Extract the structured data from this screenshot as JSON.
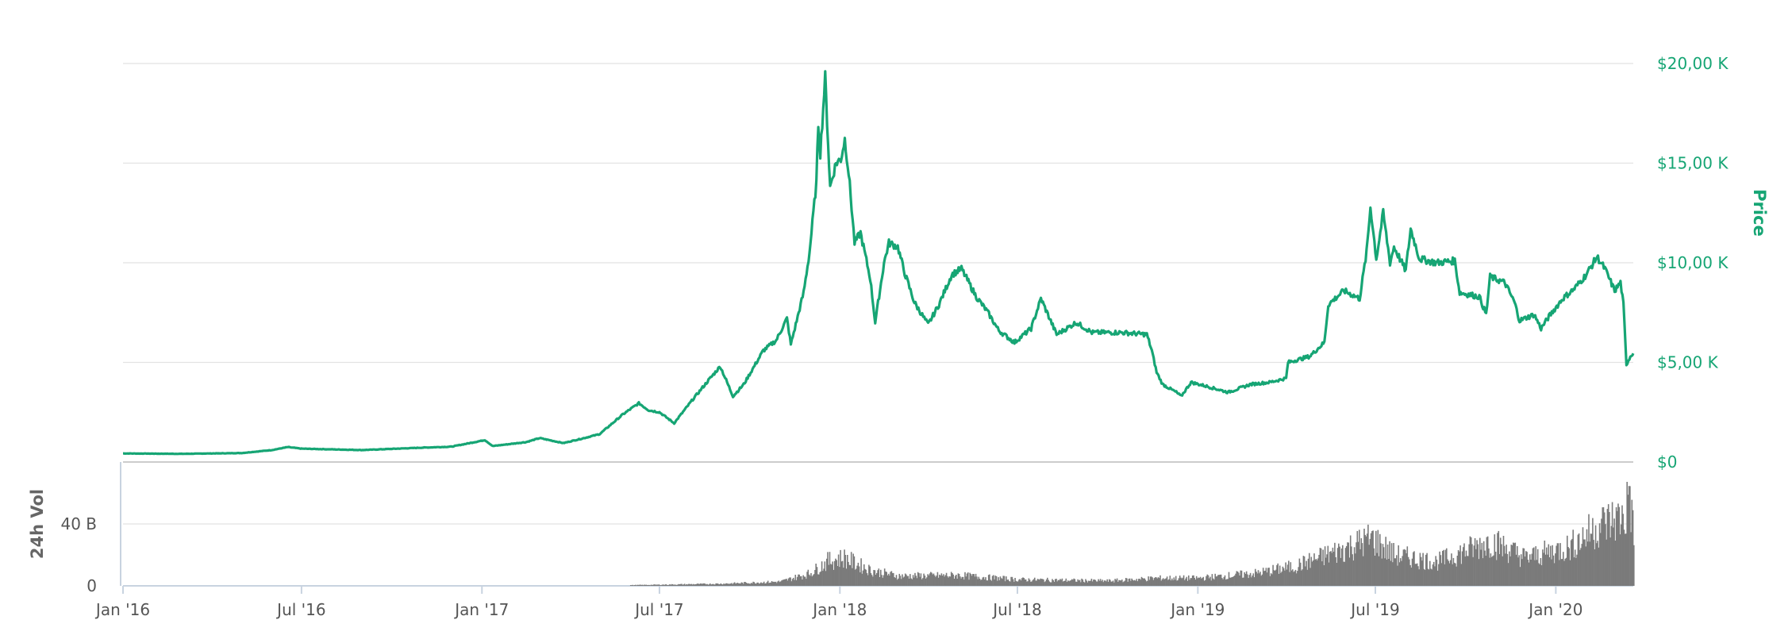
{
  "chart_data": {
    "type": "line",
    "colors": {
      "price": "#16a574",
      "volume": "#7b7b7b",
      "grid": "#e2e2e2"
    },
    "price_axis": {
      "label": "Price",
      "ticks": [
        {
          "value": 0,
          "label": "$0"
        },
        {
          "value": 5000,
          "label": "$5,00 K"
        },
        {
          "value": 10000,
          "label": "$10,00 K"
        },
        {
          "value": 15000,
          "label": "$15,00 K"
        },
        {
          "value": 20000,
          "label": "$20,00 K"
        }
      ],
      "ylim": [
        0,
        20000
      ]
    },
    "volume_axis": {
      "label": "24h Vol",
      "ticks": [
        {
          "value": 0,
          "label": "0"
        },
        {
          "value": 40000000000,
          "label": "40 B"
        }
      ],
      "ylim": [
        0,
        80000000000
      ]
    },
    "x_axis": {
      "range": [
        "2016-01-01",
        "2020-03-20"
      ],
      "ticks": [
        {
          "date": "2016-01-01",
          "label": "Jan '16"
        },
        {
          "date": "2016-07-01",
          "label": "Jul '16"
        },
        {
          "date": "2017-01-01",
          "label": "Jan '17"
        },
        {
          "date": "2017-07-01",
          "label": "Jul '17"
        },
        {
          "date": "2018-01-01",
          "label": "Jan '18"
        },
        {
          "date": "2018-07-01",
          "label": "Jul '18"
        },
        {
          "date": "2019-01-01",
          "label": "Jan '19"
        },
        {
          "date": "2019-07-01",
          "label": "Jul '19"
        },
        {
          "date": "2020-01-01",
          "label": "Jan '20"
        }
      ]
    },
    "series": [
      {
        "name": "Price",
        "points": [
          [
            "2016-01-01",
            430
          ],
          [
            "2016-03-01",
            410
          ],
          [
            "2016-05-01",
            450
          ],
          [
            "2016-06-01",
            600
          ],
          [
            "2016-06-17",
            750
          ],
          [
            "2016-07-01",
            670
          ],
          [
            "2016-09-01",
            600
          ],
          [
            "2016-11-01",
            720
          ],
          [
            "2016-12-01",
            770
          ],
          [
            "2017-01-04",
            1100
          ],
          [
            "2017-01-12",
            800
          ],
          [
            "2017-02-15",
            1000
          ],
          [
            "2017-03-01",
            1200
          ],
          [
            "2017-03-25",
            950
          ],
          [
            "2017-04-15",
            1200
          ],
          [
            "2017-05-01",
            1400
          ],
          [
            "2017-05-25",
            2400
          ],
          [
            "2017-06-10",
            2950
          ],
          [
            "2017-06-20",
            2600
          ],
          [
            "2017-07-01",
            2500
          ],
          [
            "2017-07-16",
            1950
          ],
          [
            "2017-08-05",
            3200
          ],
          [
            "2017-08-20",
            4100
          ],
          [
            "2017-09-01",
            4800
          ],
          [
            "2017-09-14",
            3300
          ],
          [
            "2017-09-25",
            3900
          ],
          [
            "2017-10-15",
            5600
          ],
          [
            "2017-10-28",
            6100
          ],
          [
            "2017-11-08",
            7200
          ],
          [
            "2017-11-12",
            5900
          ],
          [
            "2017-11-25",
            8500
          ],
          [
            "2017-12-01",
            10500
          ],
          [
            "2017-12-08",
            14000
          ],
          [
            "2017-12-10",
            17000
          ],
          [
            "2017-12-12",
            15500
          ],
          [
            "2017-12-17",
            19300
          ],
          [
            "2017-12-22",
            13800
          ],
          [
            "2017-12-28",
            15000
          ],
          [
            "2018-01-02",
            15200
          ],
          [
            "2018-01-06",
            16200
          ],
          [
            "2018-01-10",
            14500
          ],
          [
            "2018-01-16",
            11000
          ],
          [
            "2018-01-22",
            11500
          ],
          [
            "2018-02-01",
            9200
          ],
          [
            "2018-02-06",
            7000
          ],
          [
            "2018-02-15",
            10000
          ],
          [
            "2018-02-20",
            11000
          ],
          [
            "2018-03-01",
            10800
          ],
          [
            "2018-03-08",
            9500
          ],
          [
            "2018-03-18",
            8000
          ],
          [
            "2018-04-01",
            6900
          ],
          [
            "2018-04-12",
            7900
          ],
          [
            "2018-04-25",
            9400
          ],
          [
            "2018-05-05",
            9700
          ],
          [
            "2018-05-20",
            8300
          ],
          [
            "2018-06-01",
            7500
          ],
          [
            "2018-06-12",
            6600
          ],
          [
            "2018-06-28",
            6000
          ],
          [
            "2018-07-15",
            6700
          ],
          [
            "2018-07-25",
            8200
          ],
          [
            "2018-08-10",
            6400
          ],
          [
            "2018-08-30",
            7000
          ],
          [
            "2018-09-15",
            6500
          ],
          [
            "2018-10-15",
            6500
          ],
          [
            "2018-11-10",
            6400
          ],
          [
            "2018-11-15",
            5600
          ],
          [
            "2018-11-20",
            4500
          ],
          [
            "2018-11-26",
            3900
          ],
          [
            "2018-12-10",
            3500
          ],
          [
            "2018-12-15",
            3300
          ],
          [
            "2018-12-25",
            4000
          ],
          [
            "2019-01-10",
            3800
          ],
          [
            "2019-02-01",
            3500
          ],
          [
            "2019-02-24",
            3900
          ],
          [
            "2019-03-15",
            4000
          ],
          [
            "2019-04-01",
            4200
          ],
          [
            "2019-04-03",
            5000
          ],
          [
            "2019-04-25",
            5300
          ],
          [
            "2019-05-10",
            6000
          ],
          [
            "2019-05-14",
            7900
          ],
          [
            "2019-05-30",
            8600
          ],
          [
            "2019-06-15",
            8200
          ],
          [
            "2019-06-22",
            10500
          ],
          [
            "2019-06-26",
            12800
          ],
          [
            "2019-07-02",
            10200
          ],
          [
            "2019-07-09",
            12500
          ],
          [
            "2019-07-16",
            10000
          ],
          [
            "2019-07-20",
            10800
          ],
          [
            "2019-08-01",
            9600
          ],
          [
            "2019-08-06",
            11700
          ],
          [
            "2019-08-15",
            10200
          ],
          [
            "2019-09-01",
            10000
          ],
          [
            "2019-09-20",
            10100
          ],
          [
            "2019-09-25",
            8500
          ],
          [
            "2019-10-15",
            8300
          ],
          [
            "2019-10-22",
            7400
          ],
          [
            "2019-10-26",
            9300
          ],
          [
            "2019-11-10",
            9000
          ],
          [
            "2019-11-20",
            8000
          ],
          [
            "2019-11-25",
            7100
          ],
          [
            "2019-12-10",
            7400
          ],
          [
            "2019-12-17",
            6700
          ],
          [
            "2019-12-25",
            7300
          ],
          [
            "2020-01-08",
            8200
          ],
          [
            "2020-01-20",
            8700
          ],
          [
            "2020-02-01",
            9400
          ],
          [
            "2020-02-12",
            10300
          ],
          [
            "2020-02-20",
            9700
          ],
          [
            "2020-03-01",
            8600
          ],
          [
            "2020-03-07",
            9000
          ],
          [
            "2020-03-10",
            7900
          ],
          [
            "2020-03-13",
            4900
          ],
          [
            "2020-03-17",
            5300
          ],
          [
            "2020-03-20",
            5500
          ]
        ]
      },
      {
        "name": "24h Vol",
        "type": "bar",
        "unit": "USD",
        "points": [
          [
            "2016-01-01",
            0
          ],
          [
            "2017-06-01",
            500000000
          ],
          [
            "2017-09-01",
            1500000000
          ],
          [
            "2017-11-01",
            3000000000
          ],
          [
            "2017-12-01",
            9000000000
          ],
          [
            "2017-12-20",
            18000000000
          ],
          [
            "2018-01-05",
            20000000000
          ],
          [
            "2018-02-01",
            11000000000
          ],
          [
            "2018-03-01",
            7000000000
          ],
          [
            "2018-05-01",
            7500000000
          ],
          [
            "2018-07-01",
            4500000000
          ],
          [
            "2018-10-01",
            3500000000
          ],
          [
            "2018-11-20",
            5500000000
          ],
          [
            "2019-01-01",
            5500000000
          ],
          [
            "2019-03-01",
            9000000000
          ],
          [
            "2019-04-10",
            14000000000
          ],
          [
            "2019-05-20",
            24000000000
          ],
          [
            "2019-06-27",
            34000000000
          ],
          [
            "2019-07-20",
            22000000000
          ],
          [
            "2019-09-01",
            17000000000
          ],
          [
            "2019-10-26",
            32000000000
          ],
          [
            "2019-12-01",
            20000000000
          ],
          [
            "2020-01-15",
            28000000000
          ],
          [
            "2020-02-15",
            44000000000
          ],
          [
            "2020-03-12",
            50000000000
          ],
          [
            "2020-03-15",
            74000000000
          ],
          [
            "2020-03-20",
            33000000000
          ]
        ]
      }
    ],
    "grid": true,
    "legend": "none"
  }
}
